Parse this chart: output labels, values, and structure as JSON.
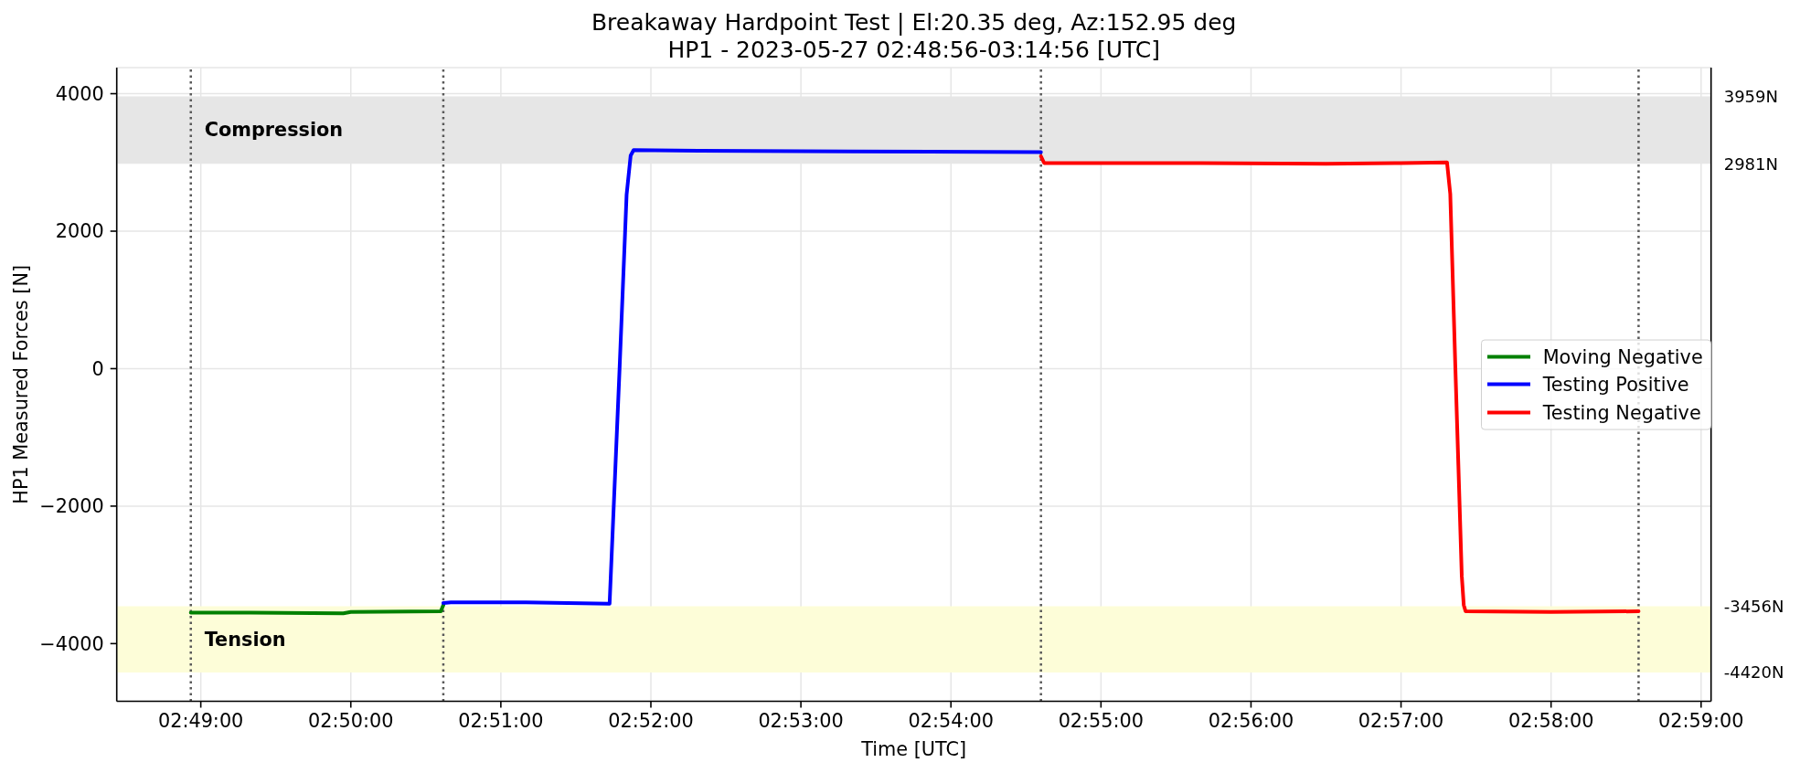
{
  "chart_data": {
    "type": "line",
    "title": "Breakaway Hardpoint Test | El:20.35 deg, Az:152.95 deg",
    "subtitle": "HP1 - 2023-05-27 02:48:56-03:14:56 [UTC]",
    "xlabel": "Time [UTC]",
    "ylabel": "HP1 Measured Forces [N]",
    "series": [
      {
        "name": "Moving Negative",
        "color": "#008000",
        "x": [
          2.81556,
          2.82222,
          2.8325,
          2.83333,
          2.84333,
          2.84361
        ],
        "values": [
          -3550,
          -3550,
          -3560,
          -3540,
          -3530,
          -3440
        ]
      },
      {
        "name": "Testing Positive",
        "color": "#0000ff",
        "x": [
          2.84361,
          2.84444,
          2.85278,
          2.86208,
          2.86319,
          2.86397,
          2.86442,
          2.86475,
          2.87222,
          2.88889,
          2.91
        ],
        "values": [
          -3410,
          -3400,
          -3400,
          -3420,
          0,
          2530,
          3100,
          3180,
          3170,
          3160,
          3150
        ]
      },
      {
        "name": "Testing Negative",
        "color": "#ff0000",
        "x": [
          2.91,
          2.91036,
          2.92778,
          2.94167,
          2.95,
          2.95511,
          2.95547,
          2.95603,
          2.95675,
          2.95697,
          2.95717,
          2.96667,
          2.97639
        ],
        "values": [
          3090,
          2990,
          2990,
          2980,
          2990,
          3000,
          2540,
          40,
          -3020,
          -3440,
          -3530,
          -3540,
          -3530
        ]
      }
    ],
    "xlim": [
      2.80733,
      2.98444
    ],
    "xticks": [
      {
        "value": 2.816667,
        "label": "02:49:00"
      },
      {
        "value": 2.833333,
        "label": "02:50:00"
      },
      {
        "value": 2.85,
        "label": "02:51:00"
      },
      {
        "value": 2.866667,
        "label": "02:52:00"
      },
      {
        "value": 2.883333,
        "label": "02:53:00"
      },
      {
        "value": 2.9,
        "label": "02:54:00"
      },
      {
        "value": 2.916667,
        "label": "02:55:00"
      },
      {
        "value": 2.933333,
        "label": "02:56:00"
      },
      {
        "value": 2.95,
        "label": "02:57:00"
      },
      {
        "value": 2.966667,
        "label": "02:58:00"
      },
      {
        "value": 2.983333,
        "label": "02:59:00"
      }
    ],
    "ylim": [
      -4839,
      4378
    ],
    "yticks": [
      {
        "value": -4000,
        "label": "−4000"
      },
      {
        "value": -2000,
        "label": "−2000"
      },
      0,
      2000,
      4000
    ],
    "y2lim": [
      -4839,
      4378
    ],
    "y2ticks": [
      {
        "value": 3959,
        "label": "3959N"
      },
      {
        "value": 2981,
        "label": "2981N"
      },
      {
        "value": -3456,
        "label": "-3456N"
      },
      {
        "value": -4420,
        "label": "-4420N"
      }
    ],
    "bands": [
      {
        "axis": "y",
        "from": 2981,
        "to": 3959,
        "label": "Compression",
        "color": "#e6e6e6"
      },
      {
        "axis": "y",
        "from": -4420,
        "to": -3456,
        "label": "Tension",
        "color": "#fdfdd8"
      }
    ],
    "ref_lines": [
      {
        "axis": "x",
        "value": 2.81556,
        "color": "#595959",
        "line_style": "dotted"
      },
      {
        "axis": "x",
        "value": 2.84361,
        "color": "#595959",
        "line_style": "dotted"
      },
      {
        "axis": "x",
        "value": 2.91,
        "color": "#595959",
        "line_style": "dotted"
      },
      {
        "axis": "x",
        "value": 2.97639,
        "color": "#595959",
        "line_style": "dotted"
      }
    ],
    "grid": true,
    "legend": "right"
  }
}
